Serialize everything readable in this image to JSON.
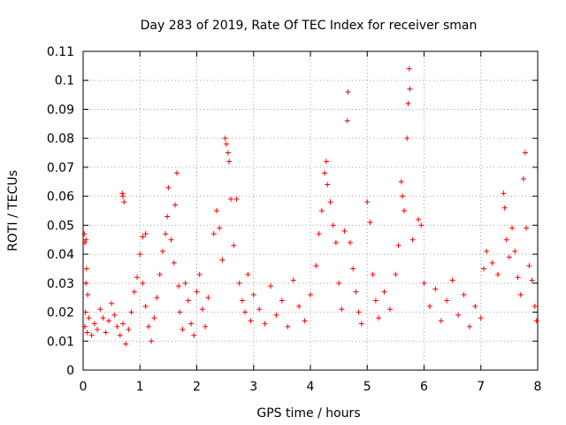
{
  "chart_data": {
    "type": "scatter",
    "title": "Day 283 of 2019, Rate Of TEC Index for receiver sman",
    "xlabel": "GPS time / hours",
    "ylabel": "ROTI / TECUs",
    "xlim": [
      0,
      8
    ],
    "ylim": [
      0,
      0.11
    ],
    "xticks": [
      "0",
      "1",
      "2",
      "3",
      "4",
      "5",
      "6",
      "7",
      "8"
    ],
    "yticks": [
      "0",
      "0.01",
      "0.02",
      "0.03",
      "0.04",
      "0.05",
      "0.06",
      "0.07",
      "0.08",
      "0.09",
      "0.1",
      "0.11"
    ],
    "grid": true,
    "marker": "+",
    "color": "#ff0000",
    "series": [
      {
        "name": "ROTI",
        "points": [
          [
            0.02,
            0.047
          ],
          [
            0.03,
            0.044
          ],
          [
            0.05,
            0.045
          ],
          [
            0.06,
            0.035
          ],
          [
            0.05,
            0.03
          ],
          [
            0.08,
            0.026
          ],
          [
            0.04,
            0.02
          ],
          [
            0.1,
            0.018
          ],
          [
            0.03,
            0.015
          ],
          [
            0.07,
            0.013
          ],
          [
            0.15,
            0.012
          ],
          [
            0.2,
            0.016
          ],
          [
            0.25,
            0.014
          ],
          [
            0.3,
            0.021
          ],
          [
            0.35,
            0.018
          ],
          [
            0.4,
            0.013
          ],
          [
            0.45,
            0.017
          ],
          [
            0.5,
            0.023
          ],
          [
            0.55,
            0.019
          ],
          [
            0.6,
            0.015
          ],
          [
            0.65,
            0.012
          ],
          [
            0.69,
            0.061
          ],
          [
            0.7,
            0.06
          ],
          [
            0.72,
            0.058
          ],
          [
            0.7,
            0.016
          ],
          [
            0.75,
            0.009
          ],
          [
            0.8,
            0.014
          ],
          [
            0.85,
            0.02
          ],
          [
            0.9,
            0.027
          ],
          [
            0.95,
            0.032
          ],
          [
            1.0,
            0.04
          ],
          [
            1.05,
            0.046
          ],
          [
            1.1,
            0.047
          ],
          [
            1.05,
            0.03
          ],
          [
            1.1,
            0.022
          ],
          [
            1.15,
            0.015
          ],
          [
            1.2,
            0.01
          ],
          [
            1.25,
            0.018
          ],
          [
            1.3,
            0.025
          ],
          [
            1.35,
            0.033
          ],
          [
            1.4,
            0.041
          ],
          [
            1.45,
            0.047
          ],
          [
            1.48,
            0.053
          ],
          [
            1.5,
            0.063
          ],
          [
            1.55,
            0.045
          ],
          [
            1.6,
            0.037
          ],
          [
            1.65,
            0.068
          ],
          [
            1.62,
            0.057
          ],
          [
            1.68,
            0.029
          ],
          [
            1.7,
            0.02
          ],
          [
            1.75,
            0.014
          ],
          [
            1.8,
            0.03
          ],
          [
            1.85,
            0.024
          ],
          [
            1.9,
            0.016
          ],
          [
            1.95,
            0.012
          ],
          [
            2.0,
            0.027
          ],
          [
            2.05,
            0.033
          ],
          [
            2.1,
            0.021
          ],
          [
            2.15,
            0.015
          ],
          [
            2.2,
            0.025
          ],
          [
            2.3,
            0.047
          ],
          [
            2.35,
            0.055
          ],
          [
            2.4,
            0.049
          ],
          [
            2.45,
            0.038
          ],
          [
            2.5,
            0.08
          ],
          [
            2.52,
            0.078
          ],
          [
            2.55,
            0.075
          ],
          [
            2.57,
            0.072
          ],
          [
            2.6,
            0.059
          ],
          [
            2.7,
            0.059
          ],
          [
            2.65,
            0.043
          ],
          [
            2.75,
            0.03
          ],
          [
            2.8,
            0.024
          ],
          [
            2.85,
            0.02
          ],
          [
            2.9,
            0.033
          ],
          [
            2.95,
            0.017
          ],
          [
            3.0,
            0.026
          ],
          [
            3.1,
            0.021
          ],
          [
            3.2,
            0.016
          ],
          [
            3.3,
            0.029
          ],
          [
            3.4,
            0.019
          ],
          [
            3.5,
            0.024
          ],
          [
            3.6,
            0.015
          ],
          [
            3.7,
            0.031
          ],
          [
            3.8,
            0.022
          ],
          [
            3.9,
            0.017
          ],
          [
            4.0,
            0.026
          ],
          [
            4.1,
            0.036
          ],
          [
            4.15,
            0.047
          ],
          [
            4.2,
            0.055
          ],
          [
            4.25,
            0.068
          ],
          [
            4.28,
            0.072
          ],
          [
            4.3,
            0.064
          ],
          [
            4.35,
            0.058
          ],
          [
            4.4,
            0.05
          ],
          [
            4.45,
            0.044
          ],
          [
            4.5,
            0.03
          ],
          [
            4.55,
            0.021
          ],
          [
            4.6,
            0.048
          ],
          [
            4.65,
            0.086
          ],
          [
            4.66,
            0.096
          ],
          [
            4.7,
            0.044
          ],
          [
            4.75,
            0.035
          ],
          [
            4.8,
            0.027
          ],
          [
            4.85,
            0.02
          ],
          [
            4.9,
            0.016
          ],
          [
            5.0,
            0.058
          ],
          [
            5.05,
            0.051
          ],
          [
            5.1,
            0.033
          ],
          [
            5.15,
            0.024
          ],
          [
            5.2,
            0.018
          ],
          [
            5.3,
            0.027
          ],
          [
            5.4,
            0.021
          ],
          [
            5.5,
            0.033
          ],
          [
            5.55,
            0.043
          ],
          [
            5.6,
            0.065
          ],
          [
            5.62,
            0.06
          ],
          [
            5.65,
            0.055
          ],
          [
            5.7,
            0.08
          ],
          [
            5.72,
            0.092
          ],
          [
            5.75,
            0.097
          ],
          [
            5.74,
            0.104
          ],
          [
            5.8,
            0.045
          ],
          [
            5.9,
            0.052
          ],
          [
            5.95,
            0.05
          ],
          [
            6.0,
            0.03
          ],
          [
            6.1,
            0.022
          ],
          [
            6.2,
            0.028
          ],
          [
            6.3,
            0.017
          ],
          [
            6.4,
            0.024
          ],
          [
            6.5,
            0.031
          ],
          [
            6.6,
            0.019
          ],
          [
            6.7,
            0.026
          ],
          [
            6.8,
            0.015
          ],
          [
            6.9,
            0.022
          ],
          [
            7.0,
            0.018
          ],
          [
            7.05,
            0.035
          ],
          [
            7.1,
            0.041
          ],
          [
            7.2,
            0.037
          ],
          [
            7.3,
            0.033
          ],
          [
            7.4,
            0.061
          ],
          [
            7.42,
            0.056
          ],
          [
            7.45,
            0.045
          ],
          [
            7.5,
            0.039
          ],
          [
            7.55,
            0.049
          ],
          [
            7.6,
            0.041
          ],
          [
            7.65,
            0.032
          ],
          [
            7.7,
            0.026
          ],
          [
            7.75,
            0.066
          ],
          [
            7.78,
            0.075
          ],
          [
            7.8,
            0.049
          ],
          [
            7.85,
            0.036
          ],
          [
            7.9,
            0.031
          ],
          [
            7.95,
            0.022
          ],
          [
            7.98,
            0.017
          ]
        ]
      }
    ]
  }
}
